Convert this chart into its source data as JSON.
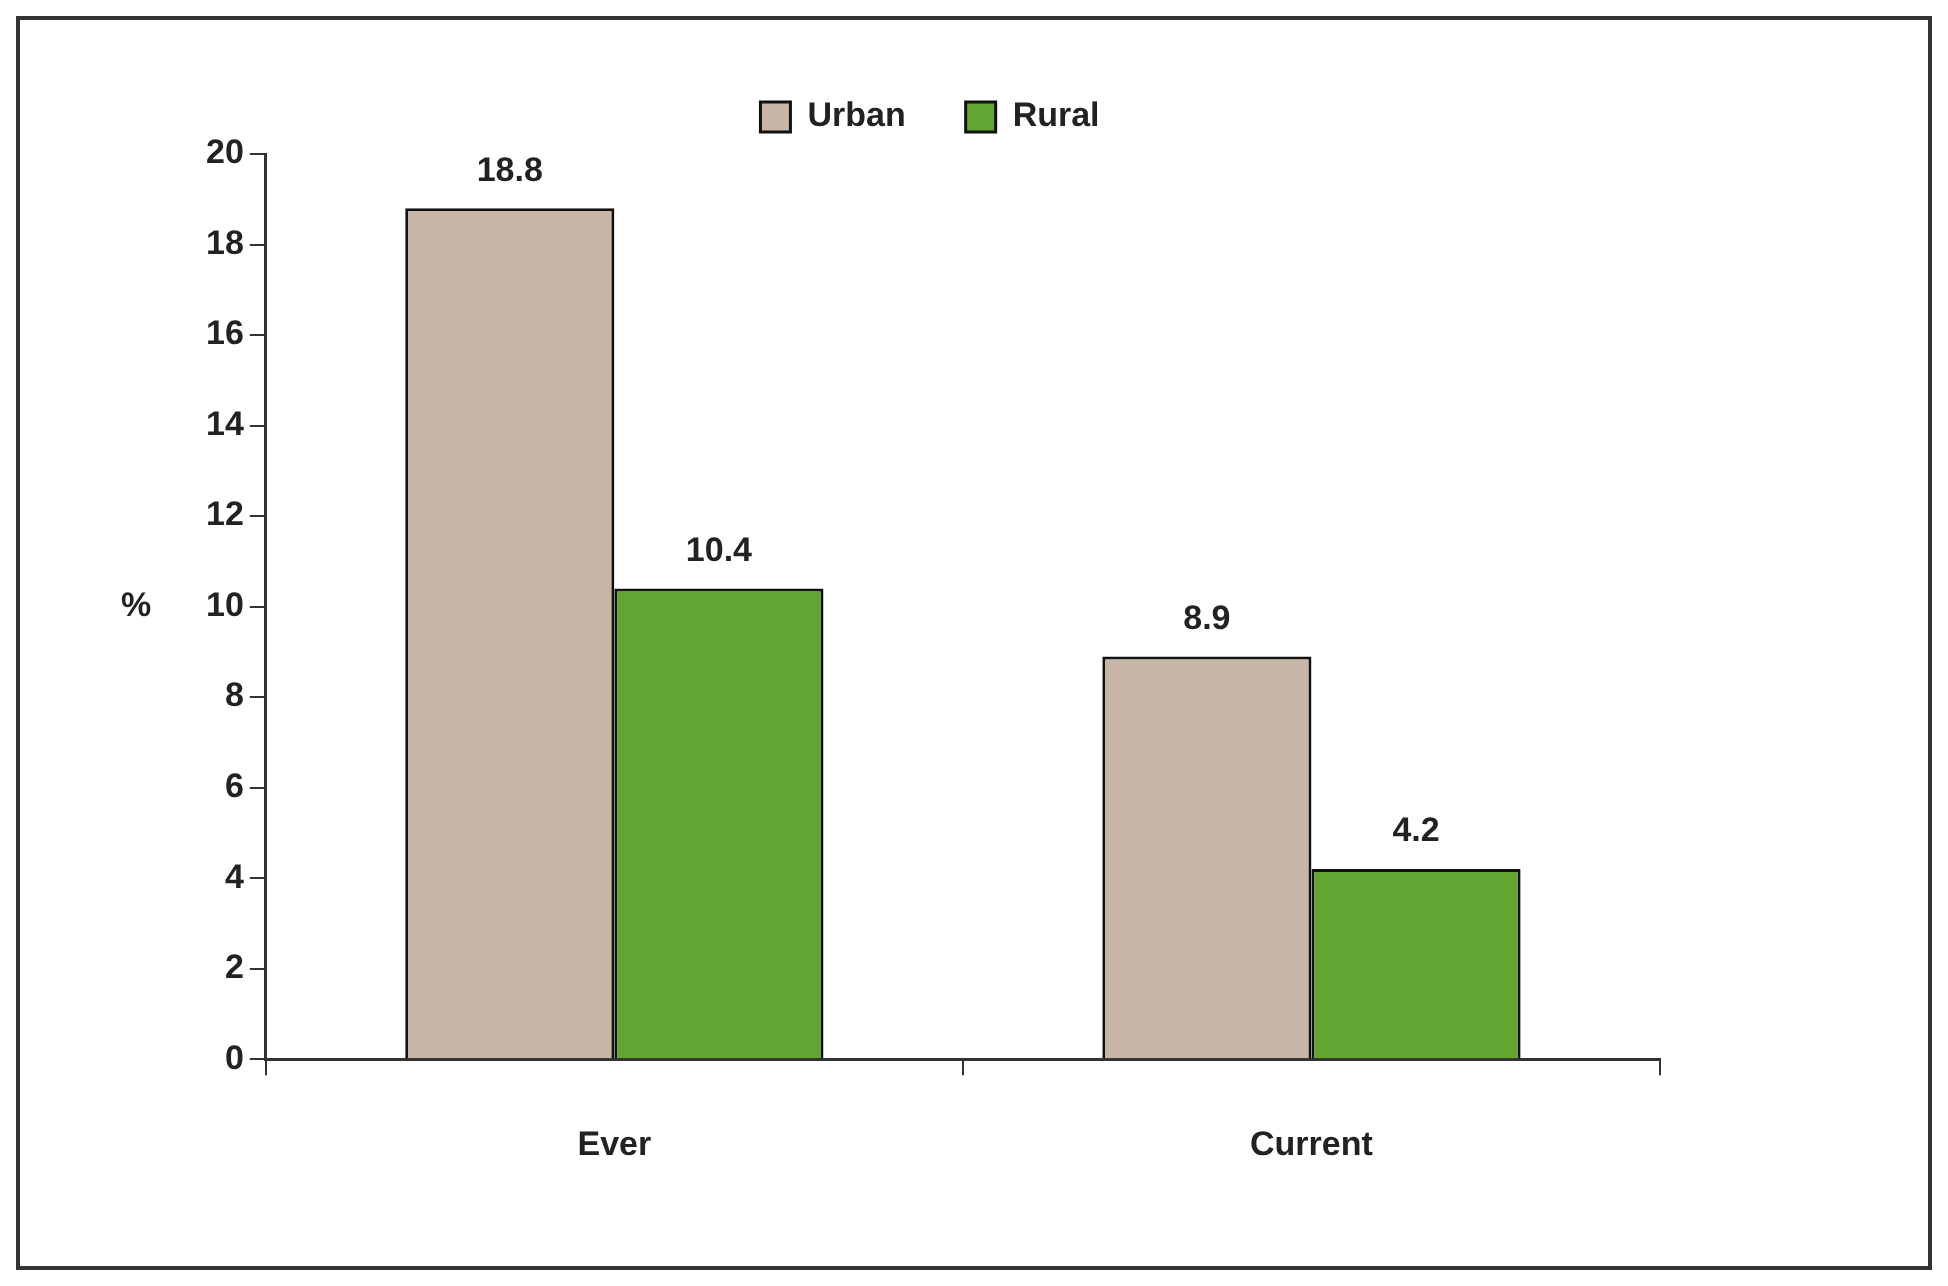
{
  "chart_data": {
    "type": "bar",
    "categories": [
      "Ever",
      "Current"
    ],
    "ylabel": "%",
    "series": [
      {
        "name": "Urban",
        "color": "#c8b5a6",
        "values": [
          18.8,
          8.9
        ]
      },
      {
        "name": "Rural",
        "color": "#62a532",
        "values": [
          10.4,
          4.2
        ]
      }
    ],
    "ylim": [
      0,
      20
    ],
    "yticks": [
      0,
      2,
      4,
      6,
      8,
      10,
      12,
      14,
      16,
      18,
      20
    ],
    "grid": false,
    "legend": "top",
    "data_labels": true
  }
}
